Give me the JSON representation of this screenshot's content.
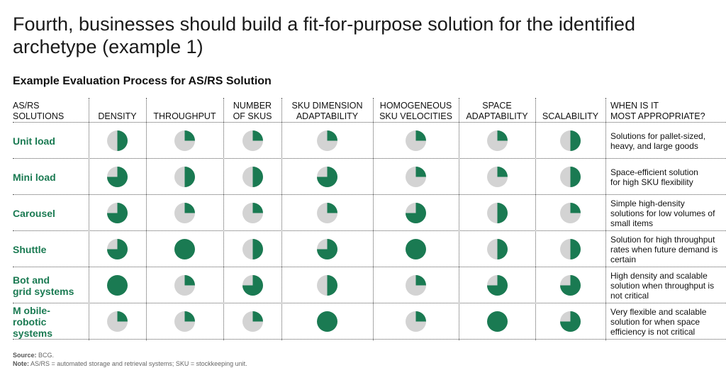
{
  "title": "Fourth, businesses should build a fit-for-purpose solution for the identified archetype (example 1)",
  "subtitle": "Example Evaluation Process for AS/RS Solution",
  "colors": {
    "accent": "#1a7a52",
    "empty": "#d3d3d3"
  },
  "chart_data": {
    "type": "table",
    "title": "Example Evaluation Process for AS/RS Solution",
    "scale": "Harvey balls, fraction filled (0.25 = quarter, 0.5 = half, 0.75 = three-quarters, 1 = full)",
    "corner_header": [
      "AS/RS",
      "SOLUTIONS"
    ],
    "columns": [
      [
        "DENSITY"
      ],
      [
        "THROUGHPUT"
      ],
      [
        "NUMBER",
        "OF SKUS"
      ],
      [
        "SKU DIMENSION",
        "ADAPTABILITY"
      ],
      [
        "HOMOGENEOUS",
        "SKU VELOCITIES"
      ],
      [
        "SPACE",
        "ADAPTABILITY"
      ],
      [
        "SCALABILITY"
      ]
    ],
    "appropriate_header": [
      "WHEN IS IT",
      "MOST APPROPRIATE?"
    ],
    "rows": [
      {
        "name": [
          "Unit load"
        ],
        "values": [
          0.5,
          0.25,
          0.25,
          0.25,
          0.25,
          0.25,
          0.5
        ],
        "appropriate": [
          "Solutions for pallet-sized,",
          "heavy, and large goods"
        ]
      },
      {
        "name": [
          "Mini load"
        ],
        "values": [
          0.75,
          0.5,
          0.5,
          0.75,
          0.25,
          0.25,
          0.5
        ],
        "appropriate": [
          "Space-efficient solution",
          "for high SKU flexibility"
        ]
      },
      {
        "name": [
          "Carousel"
        ],
        "values": [
          0.75,
          0.25,
          0.25,
          0.25,
          0.75,
          0.5,
          0.25
        ],
        "appropriate": [
          "Simple high-density",
          "solutions for low volumes of",
          "small items"
        ]
      },
      {
        "name": [
          "Shuttle"
        ],
        "values": [
          0.75,
          1,
          0.5,
          0.75,
          1,
          0.5,
          0.5
        ],
        "appropriate": [
          "Solution for high throughput",
          "rates when future demand is",
          "certain"
        ]
      },
      {
        "name": [
          "Bot and",
          "grid systems"
        ],
        "values": [
          1,
          0.25,
          0.75,
          0.5,
          0.25,
          0.75,
          0.75
        ],
        "appropriate": [
          "High density and scalable",
          "solution when throughput is",
          "not critical"
        ]
      },
      {
        "name": [
          "M obile-",
          "robotic",
          "systems"
        ],
        "values": [
          0.25,
          0.25,
          0.25,
          1,
          0.25,
          1,
          0.75
        ],
        "appropriate": [
          "Very flexible and scalable",
          "solution for when space",
          "efficiency is not critical"
        ]
      }
    ]
  },
  "source_label": "Source:",
  "source_text": " BCG.",
  "note_label": "Note:",
  "note_text": " AS/RS = automated storage and retrieval systems; SKU = stockkeeping unit."
}
